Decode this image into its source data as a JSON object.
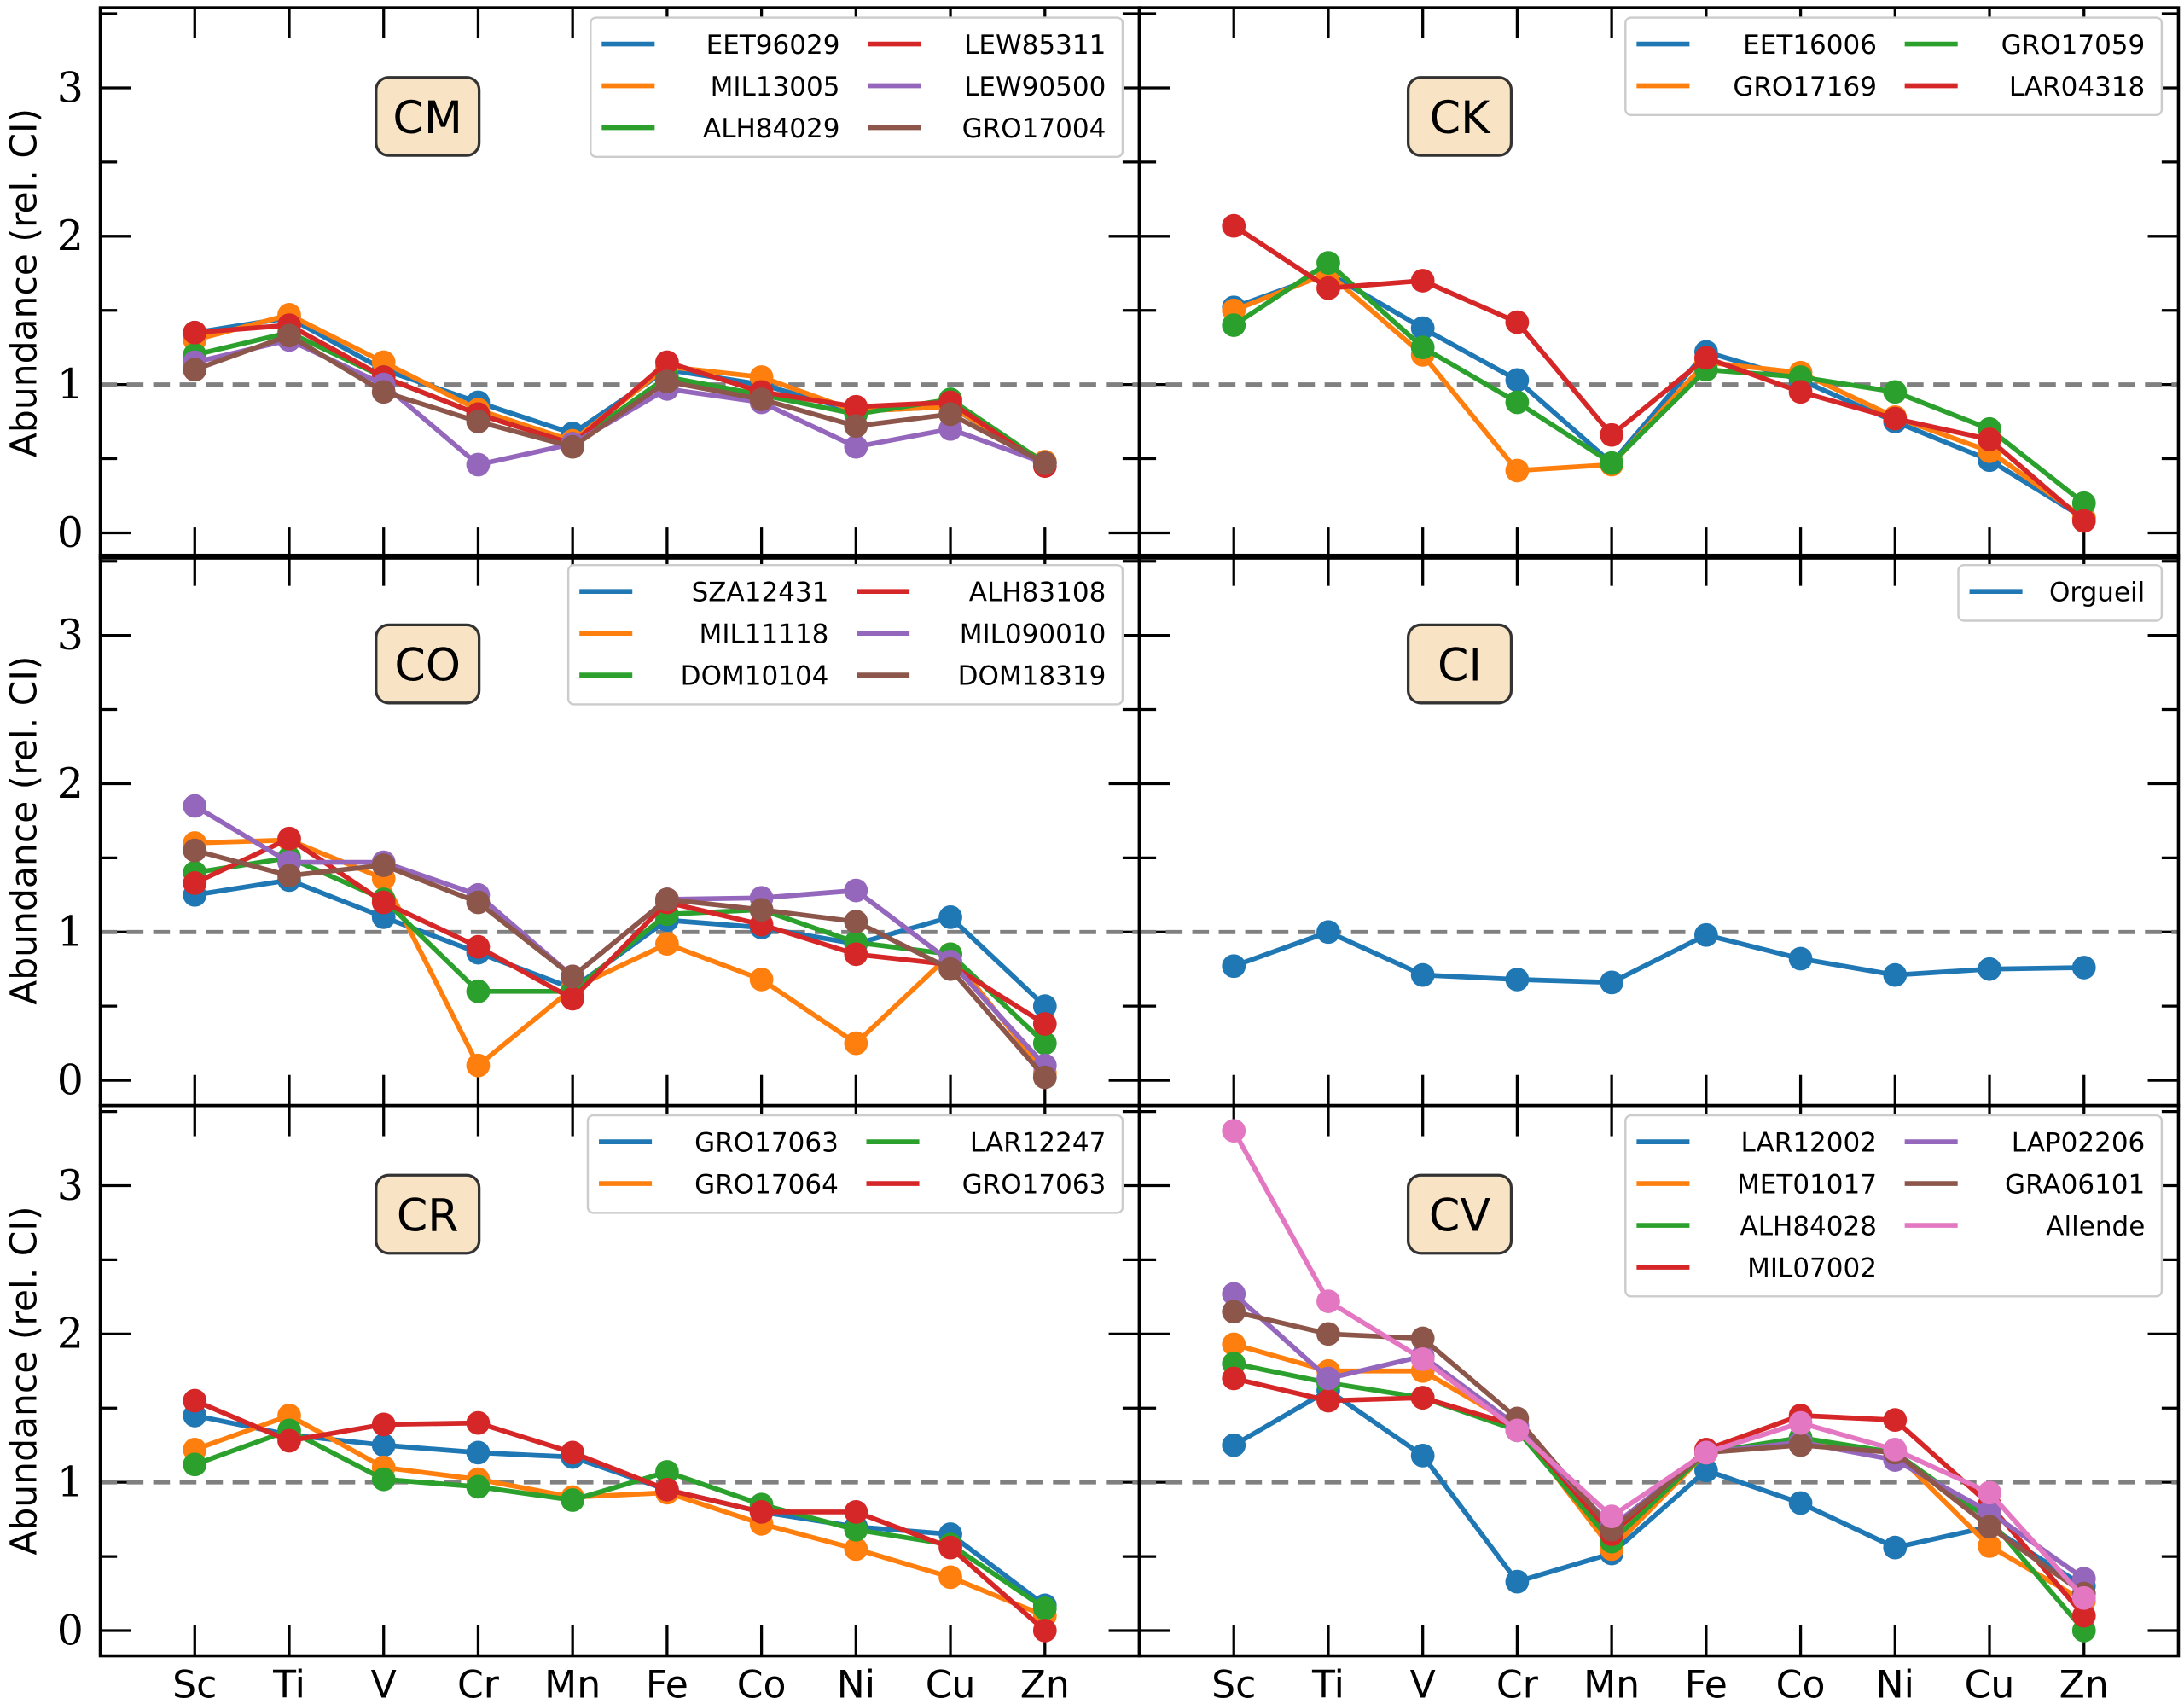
{
  "chart_data": {
    "type": "line",
    "ylabel": "Abundance (rel. CI)",
    "categories": [
      "Sc",
      "Ti",
      "V",
      "Cr",
      "Mn",
      "Fe",
      "Co",
      "Ni",
      "Cu",
      "Zn"
    ],
    "ylim": [
      -0.17,
      3.54
    ],
    "yticks": [
      0,
      1,
      2,
      3
    ],
    "reference_line": {
      "y": 1,
      "style": "dashed",
      "color": "#808080"
    },
    "grid": false,
    "legend_placement": "top-right",
    "panels": [
      {
        "label": "CM",
        "series": [
          {
            "name": "EET96029",
            "color": "#1f77b4",
            "values": [
              1.35,
              1.45,
              1.1,
              0.88,
              0.67,
              1.1,
              1.0,
              0.82,
              0.85,
              0.47
            ]
          },
          {
            "name": "MIL13005",
            "color": "#ff7f0e",
            "values": [
              1.3,
              1.47,
              1.15,
              0.83,
              0.62,
              1.12,
              1.05,
              0.82,
              0.85,
              0.48
            ]
          },
          {
            "name": "ALH84029",
            "color": "#2ca02c",
            "values": [
              1.2,
              1.35,
              1.05,
              0.8,
              0.6,
              1.05,
              0.93,
              0.8,
              0.9,
              0.47
            ]
          },
          {
            "name": "LEW85311",
            "color": "#d62728",
            "values": [
              1.35,
              1.4,
              1.05,
              0.8,
              0.6,
              1.15,
              0.95,
              0.85,
              0.88,
              0.45
            ]
          },
          {
            "name": "LEW90500",
            "color": "#9467bd",
            "values": [
              1.15,
              1.3,
              1.0,
              0.46,
              0.6,
              0.97,
              0.88,
              0.58,
              0.7,
              0.47
            ]
          },
          {
            "name": "GRO17004",
            "color": "#8c564b",
            "values": [
              1.1,
              1.33,
              0.95,
              0.75,
              0.58,
              1.02,
              0.9,
              0.72,
              0.8,
              0.47
            ]
          }
        ]
      },
      {
        "label": "CK",
        "series": [
          {
            "name": "EET16006",
            "color": "#1f77b4",
            "values": [
              1.52,
              1.75,
              1.38,
              1.03,
              0.47,
              1.22,
              1.03,
              0.75,
              0.49,
              0.1
            ]
          },
          {
            "name": "GRO17169",
            "color": "#ff7f0e",
            "values": [
              1.5,
              1.75,
              1.2,
              0.42,
              0.46,
              1.15,
              1.08,
              0.78,
              0.55,
              0.1
            ]
          },
          {
            "name": "GRO17059",
            "color": "#2ca02c",
            "values": [
              1.4,
              1.82,
              1.25,
              0.88,
              0.47,
              1.1,
              1.05,
              0.95,
              0.7,
              0.2
            ]
          },
          {
            "name": "LAR04318",
            "color": "#d62728",
            "values": [
              2.07,
              1.65,
              1.7,
              1.42,
              0.66,
              1.18,
              0.95,
              0.77,
              0.63,
              0.08
            ]
          }
        ]
      },
      {
        "label": "CO",
        "series": [
          {
            "name": "SZA12431",
            "color": "#1f77b4",
            "values": [
              1.25,
              1.35,
              1.1,
              0.86,
              0.62,
              1.08,
              1.03,
              0.92,
              1.1,
              0.5
            ]
          },
          {
            "name": "MIL11118",
            "color": "#ff7f0e",
            "values": [
              1.6,
              1.62,
              1.36,
              0.1,
              0.62,
              0.92,
              0.68,
              0.25,
              0.85,
              0.05
            ]
          },
          {
            "name": "DOM10104",
            "color": "#2ca02c",
            "values": [
              1.4,
              1.5,
              1.22,
              0.6,
              0.6,
              1.12,
              1.15,
              0.93,
              0.85,
              0.25
            ]
          },
          {
            "name": "ALH83108",
            "color": "#d62728",
            "values": [
              1.33,
              1.63,
              1.2,
              0.9,
              0.55,
              1.2,
              1.05,
              0.85,
              0.78,
              0.38
            ]
          },
          {
            "name": "MIL090010",
            "color": "#9467bd",
            "values": [
              1.85,
              1.47,
              1.47,
              1.25,
              0.7,
              1.22,
              1.23,
              1.28,
              0.8,
              0.1
            ]
          },
          {
            "name": "DOM18319",
            "color": "#8c564b",
            "values": [
              1.55,
              1.38,
              1.45,
              1.2,
              0.7,
              1.22,
              1.15,
              1.07,
              0.75,
              0.02
            ]
          }
        ]
      },
      {
        "label": "CI",
        "series": [
          {
            "name": "Orgueil",
            "color": "#1f77b4",
            "values": [
              0.77,
              1.0,
              0.71,
              0.68,
              0.66,
              0.98,
              0.82,
              0.71,
              0.75,
              0.76
            ]
          }
        ]
      },
      {
        "label": "CR",
        "series": [
          {
            "name": "GRO17063",
            "color": "#1f77b4",
            "values": [
              1.45,
              1.32,
              1.25,
              1.2,
              1.17,
              0.95,
              0.8,
              0.7,
              0.65,
              0.17
            ]
          },
          {
            "name": "GRO17064",
            "color": "#ff7f0e",
            "values": [
              1.22,
              1.45,
              1.1,
              1.02,
              0.9,
              0.93,
              0.72,
              0.55,
              0.36,
              0.1
            ]
          },
          {
            "name": "LAR12247",
            "color": "#2ca02c",
            "values": [
              1.12,
              1.35,
              1.02,
              0.97,
              0.88,
              1.07,
              0.85,
              0.68,
              0.58,
              0.15
            ]
          },
          {
            "name": "GRO17063",
            "color": "#d62728",
            "values": [
              1.55,
              1.28,
              1.39,
              1.4,
              1.2,
              0.95,
              0.8,
              0.8,
              0.56,
              0.0
            ]
          }
        ]
      },
      {
        "label": "CV",
        "series": [
          {
            "name": "LAR12002",
            "color": "#1f77b4",
            "values": [
              1.25,
              1.62,
              1.18,
              0.33,
              0.52,
              1.08,
              0.86,
              0.56,
              0.7,
              0.3
            ]
          },
          {
            "name": "MET01017",
            "color": "#ff7f0e",
            "values": [
              1.93,
              1.75,
              1.75,
              1.38,
              0.55,
              1.2,
              1.28,
              1.2,
              0.57,
              0.2
            ]
          },
          {
            "name": "ALH84028",
            "color": "#2ca02c",
            "values": [
              1.8,
              1.67,
              1.57,
              1.35,
              0.6,
              1.2,
              1.3,
              1.2,
              0.75,
              0.0
            ]
          },
          {
            "name": "MIL07002",
            "color": "#d62728",
            "values": [
              1.7,
              1.55,
              1.57,
              1.38,
              0.65,
              1.22,
              1.45,
              1.42,
              0.85,
              0.1
            ]
          },
          {
            "name": "LAP02206",
            "color": "#9467bd",
            "values": [
              2.27,
              1.7,
              1.85,
              1.38,
              0.7,
              1.2,
              1.27,
              1.15,
              0.8,
              0.35
            ]
          },
          {
            "name": "GRA06101",
            "color": "#8c564b",
            "values": [
              2.15,
              2.0,
              1.97,
              1.43,
              0.68,
              1.2,
              1.25,
              1.2,
              0.7,
              0.25
            ]
          },
          {
            "name": "Allende",
            "color": "#e377c2",
            "values": [
              3.37,
              2.22,
              1.83,
              1.35,
              0.77,
              1.2,
              1.4,
              1.22,
              0.93,
              0.22
            ]
          }
        ]
      }
    ]
  }
}
